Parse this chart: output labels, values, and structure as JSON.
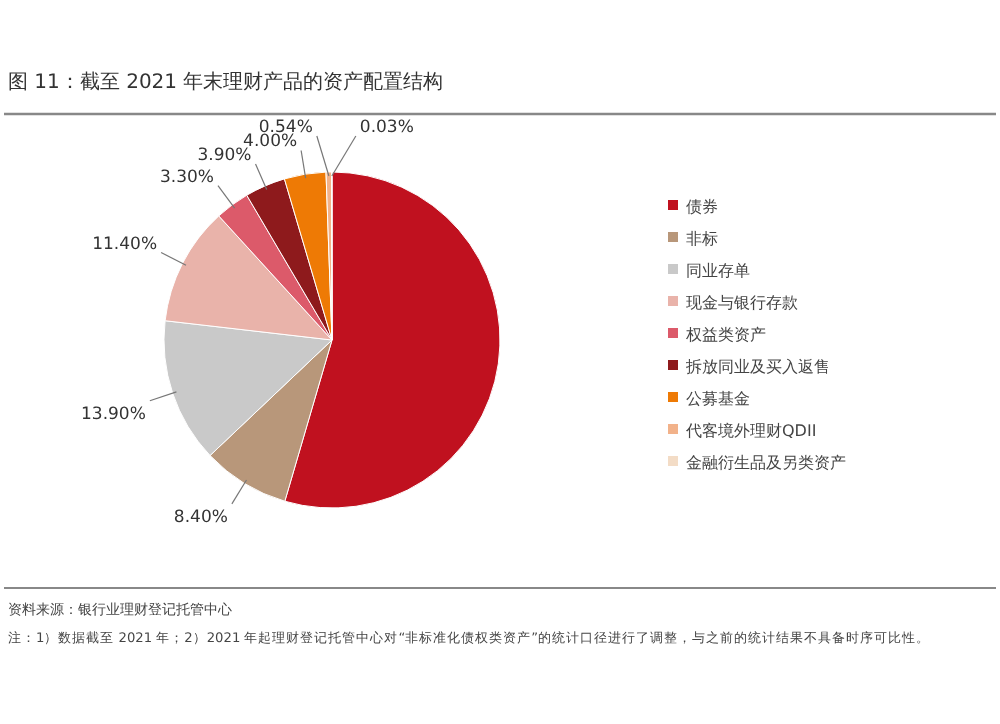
{
  "chart_data": {
    "type": "pie",
    "title": "图 11：截至 2021 年末理财产品的资产配置结构",
    "categories": [
      "债券",
      "非标",
      "同业存单",
      "现金与银行存款",
      "权益类资产",
      "拆放同业及买入返售",
      "公募基金",
      "代客境外理财QDII",
      "金融衍生品及另类资产"
    ],
    "values": [
      54.53,
      8.4,
      13.9,
      11.4,
      3.3,
      3.9,
      4.0,
      0.54,
      0.03
    ],
    "value_labels": [
      null,
      "8.40%",
      "13.90%",
      "11.40%",
      "3.30%",
      "3.90%",
      "4.00%",
      "0.54%",
      "0.03%"
    ],
    "colors": [
      "#c0111f",
      "#b8977a",
      "#c9c9c9",
      "#e9b3aa",
      "#dc5a6a",
      "#8e1a1c",
      "#ee7a05",
      "#f2b28a",
      "#f3dcc6"
    ],
    "legend": "right",
    "annotations": [
      "资料来源：银行业理财登记托管中心",
      "注：1）数据截至 2021 年；2）2021 年起理财登记托管中心对“非标准化债权类资产”的统计口径进行了调整，与之前的统计结果不具备时序可比性。"
    ]
  }
}
